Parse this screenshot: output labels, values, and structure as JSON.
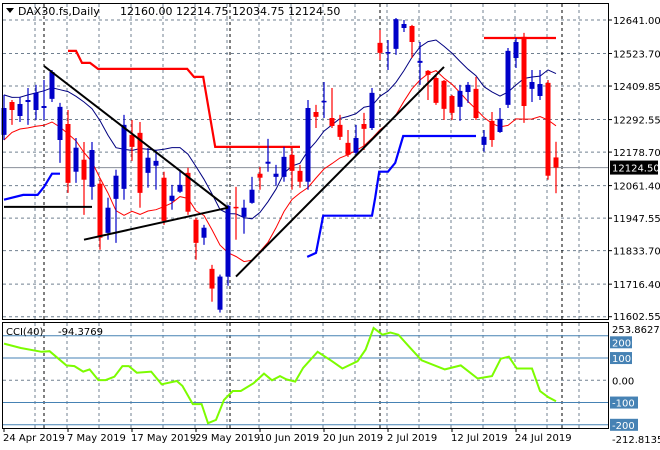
{
  "header": {
    "symbol": "DAX30.fs,Daily",
    "ohlc": "12160.00 12214.75 12034.75 12124.50",
    "menu_icon": "triangle-down-icon"
  },
  "indicator": {
    "label": "CCI(40)",
    "value": "-94.3769"
  },
  "colors": {
    "bull_candle": "#0000c8",
    "bear_candle": "#ff0000",
    "upper_channel": "#ff0000",
    "lower_channel": "#0000ff",
    "ma_high": "#000080",
    "ma_low": "#ff0000",
    "trendline": "#000000",
    "cci_line": "#7cfc00",
    "cci_levels": "#4682b4",
    "grid": "#708090"
  },
  "chart_data": [
    {
      "type": "candlestick",
      "title": "DAX30.fs,Daily",
      "grid": true,
      "ylim": [
        11602.55,
        12641.0
      ],
      "yticks": [
        "12641.00",
        "12523.70",
        "12409.85",
        "12292.55",
        "12178.70",
        "12061.40",
        "11947.55",
        "11833.70",
        "11716.40",
        "11602.55"
      ],
      "last_price": "12124.50",
      "xticks": [
        {
          "bar": 0,
          "label": "24 Apr 2019"
        },
        {
          "bar": 8,
          "label": "7 May 2019"
        },
        {
          "bar": 16,
          "label": "17 May 2019"
        },
        {
          "bar": 24,
          "label": "29 May 2019"
        },
        {
          "bar": 32,
          "label": "10 Jun 2019"
        },
        {
          "bar": 40,
          "label": "20 Jun 2019"
        },
        {
          "bar": 48,
          "label": "2 Jul 2019"
        },
        {
          "bar": 56,
          "label": "12 Jul 2019"
        },
        {
          "bar": 64,
          "label": "24 Jul 2019"
        }
      ],
      "ohlc": [
        [
          12239,
          12379,
          12221,
          12333
        ],
        [
          12354,
          12361,
          12274,
          12326
        ],
        [
          12305,
          12372,
          12284,
          12347
        ],
        [
          12354,
          12403,
          12274,
          12361
        ],
        [
          12326,
          12414,
          12291,
          12386
        ],
        [
          12333,
          12431,
          12291,
          12340
        ],
        [
          12365,
          12466,
          12354,
          12459
        ],
        [
          12221,
          12351,
          12141,
          12337
        ],
        [
          12277,
          12326,
          12036,
          12071
        ],
        [
          12110,
          12228,
          12071,
          12194
        ],
        [
          12152,
          12214,
          11959,
          12082
        ],
        [
          12057,
          12214,
          12012,
          12186
        ],
        [
          12068,
          12082,
          11837,
          11879
        ],
        [
          11896,
          12019,
          11872,
          11984
        ],
        [
          12015,
          12117,
          11861,
          12096
        ],
        [
          12050,
          12309,
          12012,
          12274
        ],
        [
          12239,
          12291,
          12148,
          12197
        ],
        [
          12246,
          12284,
          11984,
          12036
        ],
        [
          12106,
          12193,
          12054,
          12159
        ],
        [
          12131,
          12186,
          12047,
          12148
        ],
        [
          12089,
          12110,
          11924,
          11938
        ],
        [
          12008,
          12064,
          11977,
          12026
        ],
        [
          12040,
          12117,
          12036,
          12064
        ],
        [
          12106,
          12124,
          11959,
          11970
        ],
        [
          11942,
          11949,
          11802,
          11861
        ],
        [
          11879,
          11924,
          11854,
          11914
        ],
        [
          11770,
          11784,
          11655,
          11701
        ],
        [
          11627,
          11750,
          11617,
          11743
        ],
        [
          11743,
          11994,
          11711,
          11991
        ],
        [
          11987,
          12057,
          11872,
          11984
        ],
        [
          11952,
          12012,
          11893,
          11984
        ],
        [
          12001,
          12092,
          11998,
          12047
        ],
        [
          12103,
          12127,
          12047,
          12089
        ],
        [
          12138,
          12225,
          12110,
          12145
        ],
        [
          12092,
          12134,
          12061,
          12103
        ],
        [
          12092,
          12197,
          12075,
          12162
        ],
        [
          12169,
          12197,
          12047,
          12113
        ],
        [
          12113,
          12134,
          12054,
          12075
        ],
        [
          12075,
          12361,
          12047,
          12333
        ],
        [
          12319,
          12344,
          12263,
          12302
        ],
        [
          12354,
          12424,
          12298,
          12358
        ],
        [
          12298,
          12403,
          12263,
          12270
        ],
        [
          12274,
          12309,
          12221,
          12232
        ],
        [
          12211,
          12256,
          12162,
          12169
        ],
        [
          12176,
          12274,
          12166,
          12228
        ],
        [
          12277,
          12316,
          12186,
          12260
        ],
        [
          12263,
          12403,
          12256,
          12386
        ],
        [
          12561,
          12606,
          12501,
          12526
        ],
        [
          12526,
          12571,
          12466,
          12529
        ],
        [
          12540,
          12648,
          12519,
          12644
        ],
        [
          12613,
          12641,
          12599,
          12627
        ],
        [
          12620,
          12624,
          12508,
          12564
        ],
        [
          12491,
          12564,
          12414,
          12498
        ],
        [
          12463,
          12466,
          12361,
          12449
        ],
        [
          12438,
          12449,
          12344,
          12351
        ],
        [
          12428,
          12431,
          12291,
          12330
        ],
        [
          12375,
          12379,
          12291,
          12316
        ],
        [
          12337,
          12414,
          12288,
          12393
        ],
        [
          12389,
          12424,
          12351,
          12414
        ],
        [
          12400,
          12442,
          12291,
          12298
        ],
        [
          12204,
          12256,
          12180,
          12232
        ],
        [
          12288,
          12319,
          12197,
          12221
        ],
        [
          12249,
          12333,
          12246,
          12295
        ],
        [
          12344,
          12543,
          12333,
          12533
        ],
        [
          12508,
          12578,
          12473,
          12564
        ],
        [
          12582,
          12596,
          12281,
          12340
        ],
        [
          12400,
          12466,
          12354,
          12424
        ],
        [
          12375,
          12466,
          12361,
          12417
        ],
        [
          12421,
          12431,
          12082,
          12096
        ],
        [
          12160,
          12214.75,
          12034.75,
          12124.5
        ]
      ],
      "upper_channel": [
        [
          [
            8,
            12533
          ],
          [
            9,
            12533
          ],
          [
            9.75,
            12491
          ],
          [
            10.75,
            12491
          ],
          [
            11.75,
            12470
          ],
          [
            22.9,
            12470
          ],
          [
            23.75,
            12442
          ],
          [
            24.9,
            12442
          ],
          [
            26.4,
            12197
          ],
          [
            37,
            12197
          ]
        ],
        [
          [
            60,
            12578
          ],
          [
            69,
            12578
          ]
        ]
      ],
      "lower_channel": [
        [
          [
            0,
            12012
          ],
          [
            2.4,
            12029
          ],
          [
            4.2,
            12029
          ],
          [
            5,
            12057
          ],
          [
            6,
            12103
          ],
          [
            7,
            12103
          ]
        ],
        [
          [
            37.9,
            11812
          ],
          [
            39,
            11826
          ],
          [
            39.9,
            11956
          ],
          [
            46,
            11956
          ],
          [
            46.4,
            12019
          ],
          [
            46.9,
            12110
          ],
          [
            48,
            12110
          ],
          [
            48.9,
            12141
          ],
          [
            49.9,
            12235
          ],
          [
            59,
            12235
          ]
        ]
      ],
      "trendlines": [
        [
          [
            0,
            11987
          ],
          [
            11,
            11987
          ]
        ],
        [
          [
            5,
            12480
          ],
          [
            28,
            11984
          ]
        ],
        [
          [
            10,
            11872
          ],
          [
            28,
            11984
          ]
        ],
        [
          [
            29,
            11743
          ],
          [
            55,
            12477
          ]
        ]
      ]
    },
    {
      "type": "line",
      "title": "CCI(40)",
      "ylim": [
        -212.8135,
        253.8627
      ],
      "ytick_labels": {
        "max": "253.8627",
        "min": "-212.8135",
        "zero": "0.00"
      },
      "levels": [
        {
          "value": 200,
          "label": "200"
        },
        {
          "value": 100,
          "label": "100"
        },
        {
          "value": -100,
          "label": "-100"
        },
        {
          "value": -200,
          "label": "-200"
        }
      ],
      "points": [
        [
          0,
          165
        ],
        [
          2.1,
          145
        ],
        [
          4.7,
          128
        ],
        [
          5.7,
          131
        ],
        [
          7.8,
          67
        ],
        [
          8.8,
          64
        ],
        [
          9.9,
          39
        ],
        [
          10.7,
          49
        ],
        [
          11.8,
          1
        ],
        [
          12.7,
          1
        ],
        [
          13.8,
          16
        ],
        [
          14.8,
          64
        ],
        [
          15.6,
          64
        ],
        [
          16.6,
          34
        ],
        [
          18.4,
          39
        ],
        [
          19.7,
          -18
        ],
        [
          21.6,
          -3
        ],
        [
          22.3,
          -25
        ],
        [
          23.6,
          -107
        ],
        [
          24.7,
          -107
        ],
        [
          25.5,
          -193
        ],
        [
          26.5,
          -178
        ],
        [
          27.5,
          -88
        ],
        [
          28.6,
          -48
        ],
        [
          29.6,
          -48
        ],
        [
          31.2,
          -13
        ],
        [
          32.5,
          30
        ],
        [
          33.5,
          0
        ],
        [
          34.5,
          19
        ],
        [
          35.3,
          4
        ],
        [
          36.4,
          -6
        ],
        [
          37.4,
          56
        ],
        [
          39.2,
          128
        ],
        [
          41,
          86
        ],
        [
          42.3,
          53
        ],
        [
          44.2,
          86
        ],
        [
          45.2,
          138
        ],
        [
          46.2,
          235
        ],
        [
          47.3,
          205
        ],
        [
          48.3,
          215
        ],
        [
          49.3,
          205
        ],
        [
          50.6,
          153
        ],
        [
          52.2,
          90
        ],
        [
          55.1,
          49
        ],
        [
          57.1,
          67
        ],
        [
          59.2,
          8
        ],
        [
          61,
          19
        ],
        [
          62.1,
          97
        ],
        [
          63.1,
          106
        ],
        [
          64.1,
          53
        ],
        [
          66,
          53
        ],
        [
          67,
          -48
        ],
        [
          68,
          -75
        ],
        [
          69,
          -94.3769
        ]
      ]
    }
  ]
}
